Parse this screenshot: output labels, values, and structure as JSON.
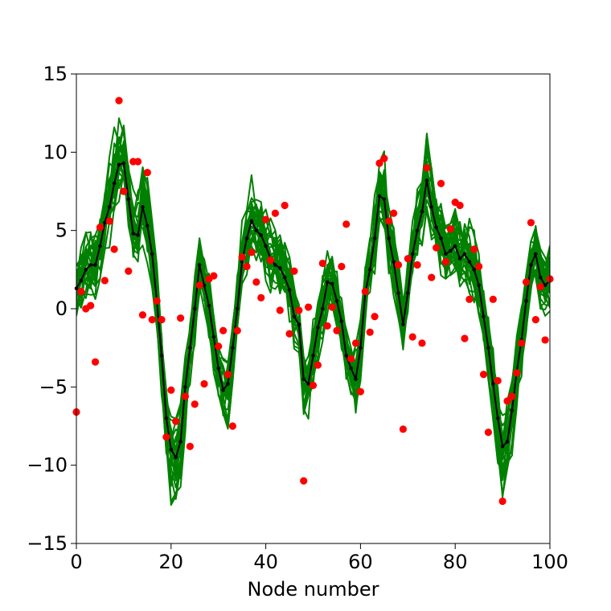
{
  "chart_data": {
    "type": "line",
    "title": "",
    "xlabel": "Node number",
    "ylabel": "",
    "xlim": [
      0,
      100
    ],
    "ylim": [
      -15,
      15
    ],
    "xticks": [
      0,
      20,
      40,
      60,
      80,
      100
    ],
    "xtick_labels": [
      "0",
      "20",
      "40",
      "60",
      "80",
      "100"
    ],
    "yticks": [
      -15,
      -10,
      -5,
      0,
      5,
      10,
      15
    ],
    "ytick_labels": [
      "−15",
      "−10",
      "−5",
      "0",
      "5",
      "10",
      "15"
    ],
    "grid": false,
    "legend": "none",
    "colors": {
      "ensemble": "#008000",
      "mean": "#000000",
      "observations": "#ff0000"
    },
    "series": [
      {
        "role": "ensemble-mean",
        "style": "line-with-dot-markers",
        "x": [
          0,
          1,
          2,
          3,
          4,
          5,
          6,
          7,
          8,
          9,
          10,
          11,
          12,
          13,
          14,
          15,
          16,
          17,
          18,
          19,
          20,
          21,
          22,
          23,
          24,
          25,
          26,
          27,
          28,
          29,
          30,
          31,
          32,
          33,
          34,
          35,
          36,
          37,
          38,
          39,
          40,
          41,
          42,
          43,
          44,
          45,
          46,
          47,
          48,
          49,
          50,
          51,
          52,
          53,
          54,
          55,
          56,
          57,
          58,
          59,
          60,
          61,
          62,
          63,
          64,
          65,
          66,
          67,
          68,
          69,
          70,
          71,
          72,
          73,
          74,
          75,
          76,
          77,
          78,
          79,
          80,
          81,
          82,
          83,
          84,
          85,
          86,
          87,
          88,
          89,
          90,
          91,
          92,
          93,
          94,
          95,
          96,
          97,
          98,
          99,
          100
        ],
        "values": [
          1.3,
          1.8,
          2.5,
          2.8,
          2.8,
          4.0,
          5.5,
          6.5,
          8.0,
          9.2,
          9.3,
          7.0,
          4.8,
          4.7,
          6.5,
          5.3,
          3.5,
          0.5,
          -3.0,
          -7.0,
          -9.0,
          -9.5,
          -8.5,
          -5.0,
          -2.5,
          0.0,
          2.8,
          1.5,
          0.2,
          -1.8,
          -3.8,
          -5.2,
          -4.8,
          -2.5,
          0.0,
          3.0,
          4.5,
          5.6,
          5.0,
          4.7,
          4.0,
          3.2,
          2.8,
          2.6,
          2.0,
          1.2,
          -0.5,
          -1.0,
          -4.5,
          -4.8,
          -3.0,
          -1.2,
          0.0,
          1.7,
          1.6,
          0.5,
          -0.8,
          -3.0,
          -3.8,
          -4.5,
          -2.5,
          1.0,
          2.5,
          4.5,
          7.2,
          7.0,
          4.5,
          3.0,
          1.0,
          -1.0,
          1.0,
          3.5,
          5.0,
          6.2,
          8.2,
          6.5,
          5.2,
          4.5,
          3.5,
          3.7,
          4.0,
          3.2,
          3.5,
          3.0,
          2.5,
          1.5,
          -0.5,
          -2.5,
          -4.8,
          -7.0,
          -8.8,
          -8.5,
          -6.5,
          -4.0,
          -2.0,
          0.5,
          2.8,
          3.5,
          2.0,
          1.5,
          1.8
        ]
      },
      {
        "role": "observations",
        "style": "scatter",
        "x": [
          0,
          1,
          2,
          3,
          4,
          5,
          6,
          7,
          8,
          9,
          10,
          11,
          12,
          13,
          14,
          15,
          16,
          17,
          18,
          19,
          20,
          21,
          22,
          23,
          24,
          25,
          26,
          27,
          28,
          29,
          30,
          31,
          32,
          33,
          34,
          35,
          36,
          37,
          38,
          39,
          40,
          41,
          42,
          43,
          44,
          45,
          46,
          47,
          48,
          49,
          50,
          51,
          52,
          53,
          54,
          55,
          56,
          57,
          58,
          59,
          60,
          61,
          62,
          63,
          64,
          65,
          66,
          67,
          68,
          69,
          70,
          71,
          72,
          73,
          74,
          75,
          76,
          77,
          78,
          79,
          80,
          81,
          82,
          83,
          84,
          85,
          86,
          87,
          88,
          89,
          90,
          91,
          92,
          93,
          94,
          95,
          96,
          97,
          98,
          99,
          100
        ],
        "values": [
          -6.6,
          1.1,
          0.0,
          0.2,
          -3.4,
          5.2,
          1.8,
          5.6,
          3.8,
          13.3,
          7.5,
          2.4,
          9.4,
          9.4,
          -0.4,
          8.7,
          -0.7,
          0.5,
          -0.7,
          -8.2,
          -5.2,
          -7.2,
          -0.6,
          -5.6,
          -8.8,
          -6.1,
          1.5,
          -4.8,
          1.9,
          2.1,
          -2.4,
          -1.4,
          -4.2,
          -7.5,
          -1.4,
          3.3,
          2.7,
          3.6,
          1.7,
          0.7,
          5.7,
          3.1,
          6.1,
          -0.1,
          6.6,
          -1.6,
          2.4,
          -0.1,
          -11.0,
          0.1,
          -4.9,
          -3.6,
          2.9,
          -1.1,
          0.1,
          -1.4,
          2.7,
          5.4,
          -3.2,
          -2.2,
          -5.3,
          1.1,
          -1.5,
          -0.5,
          9.3,
          9.6,
          5.6,
          6.1,
          2.8,
          -7.7,
          3.2,
          -1.8,
          2.8,
          -2.2,
          9.0,
          2.0,
          3.9,
          8.0,
          3.0,
          5.1,
          6.8,
          6.6,
          -1.9,
          0.6,
          3.8,
          2.7,
          -4.2,
          -7.9,
          0.6,
          -4.6,
          -12.3,
          -5.9,
          -5.6,
          -4.1,
          -2.2,
          1.7,
          5.5,
          -0.7,
          1.4,
          -2.0,
          1.9
        ]
      }
    ],
    "ensemble": {
      "role": "ensemble-members",
      "style": "lines",
      "member_count": 25,
      "x_start": 0,
      "x_end": 100,
      "note": "Green member lines scatter around the black ensemble-mean line over nodes 0–100."
    }
  }
}
